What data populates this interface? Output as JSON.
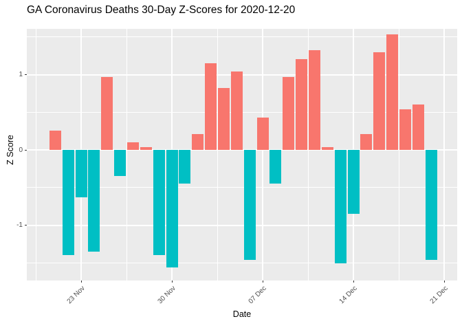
{
  "chart_data": {
    "type": "bar",
    "title": "GA Coronavirus Deaths 30-Day Z-Scores for 2020-12-20",
    "xlabel": "Date",
    "ylabel": "Z Score",
    "x": [
      "2020-11-21",
      "2020-11-22",
      "2020-11-23",
      "2020-11-24",
      "2020-11-25",
      "2020-11-26",
      "2020-11-27",
      "2020-11-28",
      "2020-11-29",
      "2020-11-30",
      "2020-12-01",
      "2020-12-02",
      "2020-12-03",
      "2020-12-04",
      "2020-12-05",
      "2020-12-06",
      "2020-12-07",
      "2020-12-08",
      "2020-12-09",
      "2020-12-10",
      "2020-12-11",
      "2020-12-12",
      "2020-12-13",
      "2020-12-14",
      "2020-12-15",
      "2020-12-16",
      "2020-12-17",
      "2020-12-18",
      "2020-12-19",
      "2020-12-20"
    ],
    "values": [
      0.26,
      -1.4,
      -0.63,
      -1.35,
      0.97,
      -0.35,
      0.1,
      0.04,
      -1.4,
      -1.56,
      -0.45,
      0.21,
      1.15,
      0.82,
      1.04,
      -1.46,
      0.43,
      -0.45,
      0.97,
      1.21,
      1.32,
      0.04,
      -1.51,
      -0.85,
      0.21,
      1.3,
      1.53,
      0.54,
      0.6,
      -1.46
    ],
    "x_tick_labels": [
      "23 Nov",
      "30 Nov",
      "07 Dec",
      "14 Dec",
      "21 Dec"
    ],
    "x_tick_dates": [
      "2020-11-23",
      "2020-11-30",
      "2020-12-07",
      "2020-12-14",
      "2020-12-21"
    ],
    "y_tick_labels": [
      "-1",
      "0",
      "1"
    ],
    "y_tick_values": [
      -1,
      0,
      1
    ],
    "ylim": [
      -1.735,
      1.607
    ],
    "grid": true,
    "legend_position": "none",
    "colors": {
      "positive_fill": "#F8766D",
      "negative_fill": "#00BFC4",
      "panel_background": "#EBEBEB",
      "gridline": "#FFFFFF",
      "tick_text": "#4D4D4D",
      "axis_text": "#000000",
      "plot_background": "#FFFFFF"
    }
  }
}
